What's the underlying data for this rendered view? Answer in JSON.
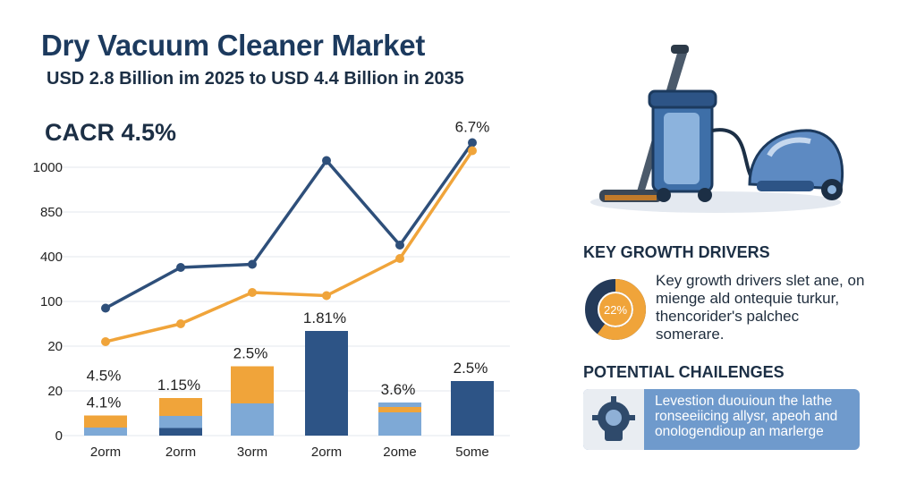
{
  "header": {
    "title": "Dry Vacuum Cleaner Market",
    "subtitle": "USD 2.8 Billion im 2025 to USD 4.4 Billion in 2035",
    "cagr": "CACR 4.5%"
  },
  "chart_data": {
    "type": "bar+line",
    "categories": [
      "2orm",
      "2orm",
      "3orm",
      "2orm",
      "2ome",
      "5ome"
    ],
    "y_tick_labels": [
      "0",
      "20",
      "20",
      "100",
      "400",
      "850",
      "1000"
    ],
    "grid": true,
    "series": [
      {
        "type": "line",
        "values": [
          2.85,
          3.76,
          3.83,
          6.15,
          4.26,
          6.55
        ]
      },
      {
        "type": "line",
        "values": [
          2.1,
          2.5,
          3.2,
          3.13,
          3.96,
          6.37
        ]
      }
    ],
    "bars": [
      {
        "segments": [
          0.18,
          0.27
        ],
        "labels": [
          "4.5%",
          "4.1%"
        ]
      },
      {
        "segments": [
          0.17,
          0.27,
          0.4
        ],
        "labels": [
          "1.15%"
        ]
      },
      {
        "segments": [
          0.72,
          0.83
        ],
        "labels": [
          "2.5%"
        ]
      },
      {
        "segments": [
          2.34
        ],
        "labels": [
          "1.81%"
        ]
      },
      {
        "segments": [
          0.52,
          0.12,
          0.1
        ],
        "labels": [
          "3.6%"
        ]
      },
      {
        "segments": [
          1.22
        ],
        "labels": [
          "2.5%"
        ]
      }
    ],
    "colors": {
      "navy": "#2d5486",
      "orange": "#f0a43a",
      "light_blue": "#7ea9d6",
      "line_navy": "#2e4f7a"
    },
    "annotations": [
      {
        "text": "6.7%"
      }
    ]
  },
  "drivers": {
    "title": "KEY GROWTH DRIVERS",
    "donut_label": "22%",
    "donut_fraction": 0.6,
    "text": "Key growth drivers slet ane, on mienge ald ontequie turkur, thencorider's palchec somerare."
  },
  "challenges": {
    "title": "POTENTIAL CHAILENGES",
    "text": "Levestion duouioun the lathe ronseeiicing allysr, apeoh and onologendioup an marlerge"
  },
  "icons": {
    "illustration": "vacuum-cleaner-icon",
    "challenge": "puzzle-gear-icon"
  }
}
